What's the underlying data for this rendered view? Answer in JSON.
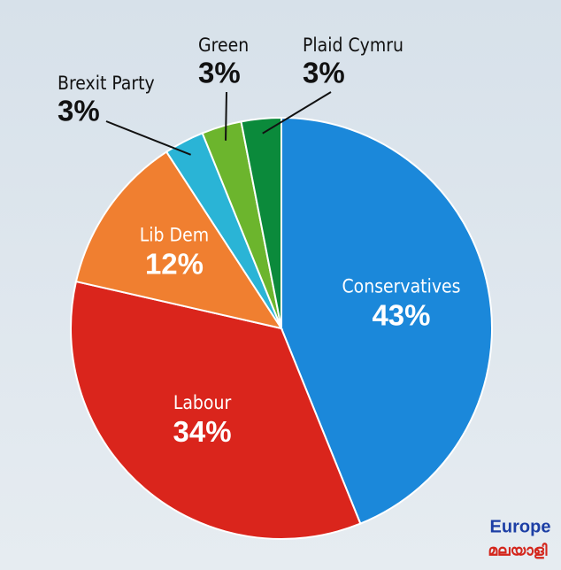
{
  "chart_data": {
    "type": "pie",
    "categories": [
      "Conservatives",
      "Labour",
      "Lib Dem",
      "Brexit Party",
      "Green",
      "Plaid Cymru"
    ],
    "values": [
      43,
      34,
      12,
      3,
      3,
      3
    ],
    "value_labels": [
      "43%",
      "34%",
      "12%",
      "3%",
      "3%",
      "3%"
    ],
    "colors": [
      "#1b88da",
      "#da251c",
      "#f07f30",
      "#2ab4d6",
      "#6cb52d",
      "#0b8a3b"
    ],
    "watermark": [
      "Europe",
      "മലയാളി"
    ]
  }
}
